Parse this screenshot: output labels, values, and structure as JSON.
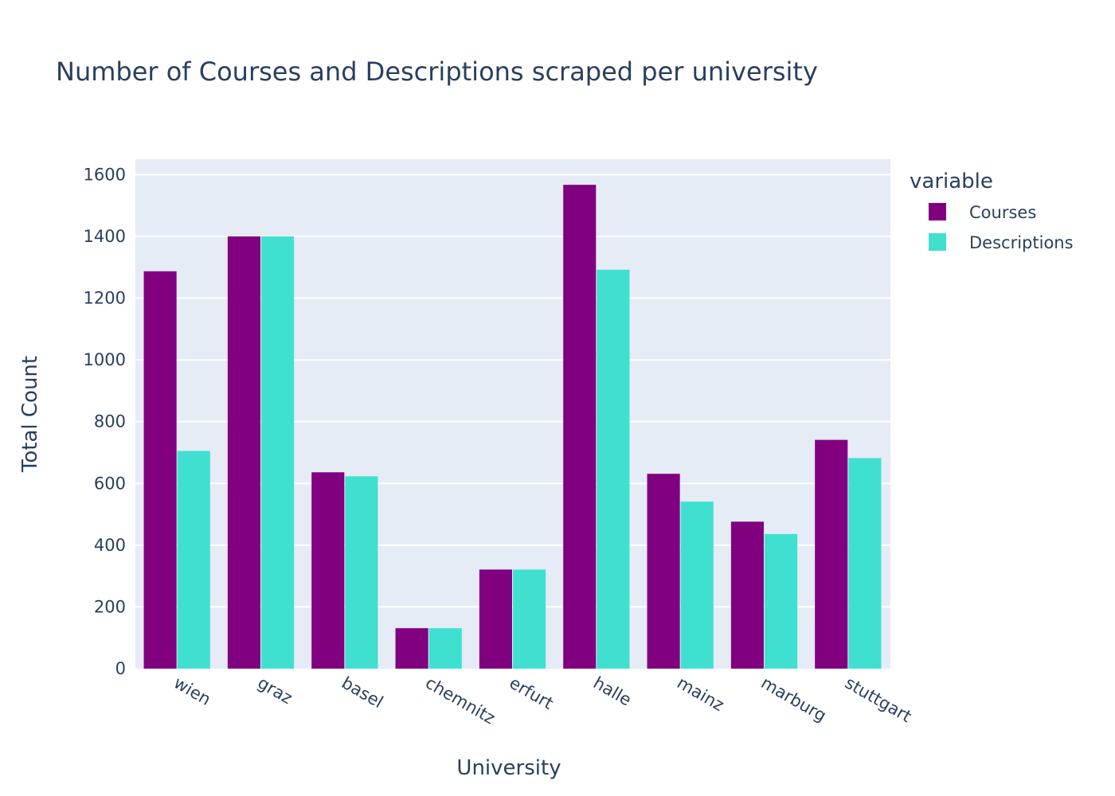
{
  "chart_data": {
    "type": "bar",
    "title": "Number of Courses and Descriptions scraped per university",
    "xlabel": "University",
    "ylabel": "Total Count",
    "categories": [
      "wien",
      "graz",
      "basel",
      "chemnitz",
      "erfurt",
      "halle",
      "mainz",
      "marburg",
      "stuttgart"
    ],
    "series": [
      {
        "name": "Courses",
        "color": "#800080",
        "values": [
          1287,
          1400,
          636,
          131,
          321,
          1567,
          631,
          476,
          741
        ]
      },
      {
        "name": "Descriptions",
        "color": "#40e0d0",
        "values": [
          705,
          1400,
          623,
          131,
          321,
          1292,
          541,
          436,
          682
        ]
      }
    ],
    "ylim": [
      0,
      1650
    ],
    "yticks": [
      0,
      200,
      400,
      600,
      800,
      1000,
      1200,
      1400,
      1600
    ],
    "grid": true,
    "legend": {
      "title": "variable",
      "placement": "right"
    },
    "plot_background": "#e5ecf6"
  }
}
